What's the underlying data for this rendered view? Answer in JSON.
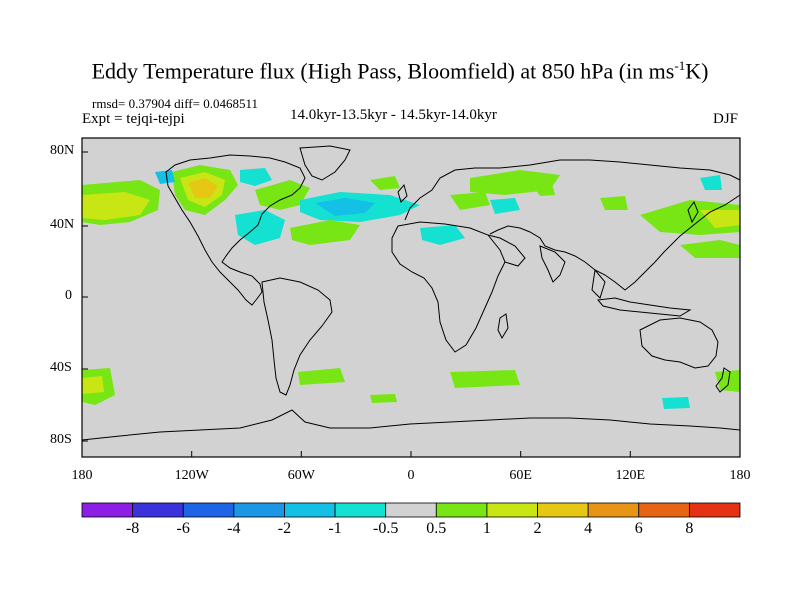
{
  "title": {
    "main": "Eddy Temperature flux (High Pass, Bloomfield) at 850 hPa (in ms",
    "superscript": "-1",
    "unit_tail": "K)"
  },
  "stats": "rmsd= 0.37904 diff= 0.0468511",
  "experiment": "Expt = tejqi-tejpi",
  "period": "14.0kyr-13.5kyr - 14.5kyr-14.0kyr",
  "season": "DJF",
  "y_ticks": [
    "80N",
    "40N",
    "0",
    "40S",
    "80S"
  ],
  "x_ticks": [
    "180",
    "120W",
    "60W",
    "0",
    "60E",
    "120E",
    "180"
  ],
  "colorbar": {
    "labels": [
      "-8",
      "-6",
      "-4",
      "-2",
      "-1",
      "-0.5",
      "0.5",
      "1",
      "2",
      "4",
      "6",
      "8"
    ],
    "colors": [
      "#8c1ee6",
      "#3c32dc",
      "#1e64e6",
      "#1e96e6",
      "#14c0e6",
      "#14e1d2",
      "#d2d2d2",
      "#78e614",
      "#c8e614",
      "#e6c814",
      "#e69614",
      "#e66414",
      "#e63214"
    ]
  },
  "map_background": "#d2d2d2"
}
